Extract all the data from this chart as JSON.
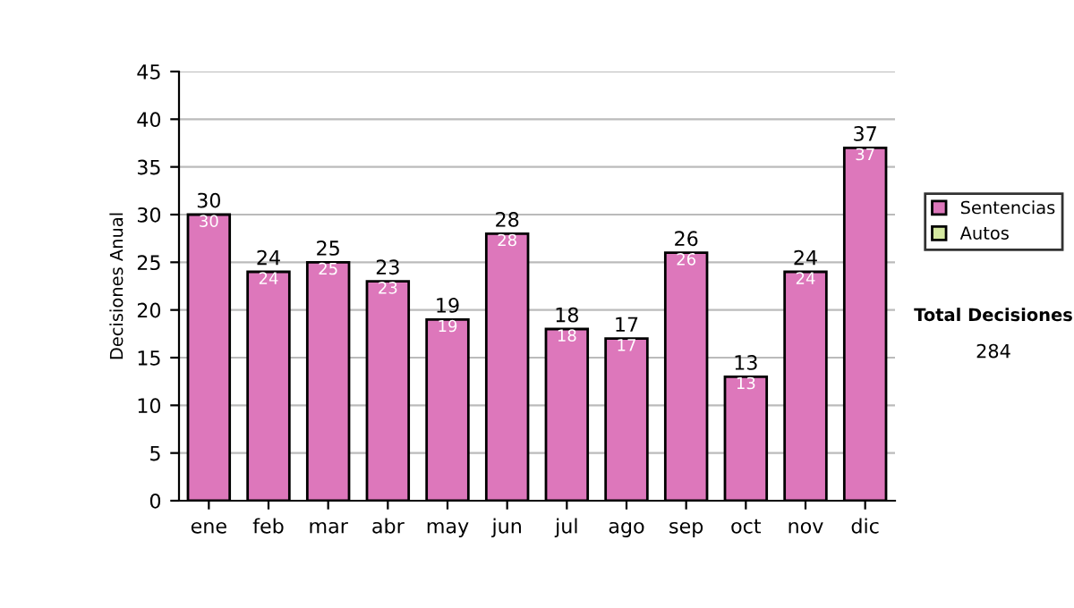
{
  "chart_data": {
    "type": "bar",
    "stacked": true,
    "ylabel": "Decisiones Anual",
    "categories": [
      "ene",
      "feb",
      "mar",
      "abr",
      "may",
      "jun",
      "jul",
      "ago",
      "sep",
      "oct",
      "nov",
      "dic"
    ],
    "series": [
      {
        "name": "Sentencias",
        "color": "#dd77bb",
        "values": [
          30,
          24,
          25,
          23,
          19,
          28,
          18,
          17,
          26,
          13,
          24,
          37
        ],
        "value_labels": [
          "30",
          "24",
          "25",
          "23",
          "19",
          "28",
          "18",
          "17",
          "26",
          "13",
          "24",
          "37"
        ]
      },
      {
        "name": "Autos",
        "color": "#d4e8a0",
        "values": [
          0,
          0,
          0,
          0,
          0,
          0,
          0,
          0,
          0,
          0,
          0,
          0
        ]
      }
    ],
    "totals": [
      "30",
      "24",
      "25",
      "23",
      "19",
      "28",
      "18",
      "17",
      "26",
      "13",
      "24",
      "37"
    ],
    "ylim": [
      0,
      45
    ],
    "yticks": [
      0,
      5,
      10,
      15,
      20,
      25,
      30,
      35,
      40,
      45
    ],
    "grid": "y",
    "legend": "right",
    "annotations": [
      "Total Decisiones",
      "284"
    ]
  }
}
